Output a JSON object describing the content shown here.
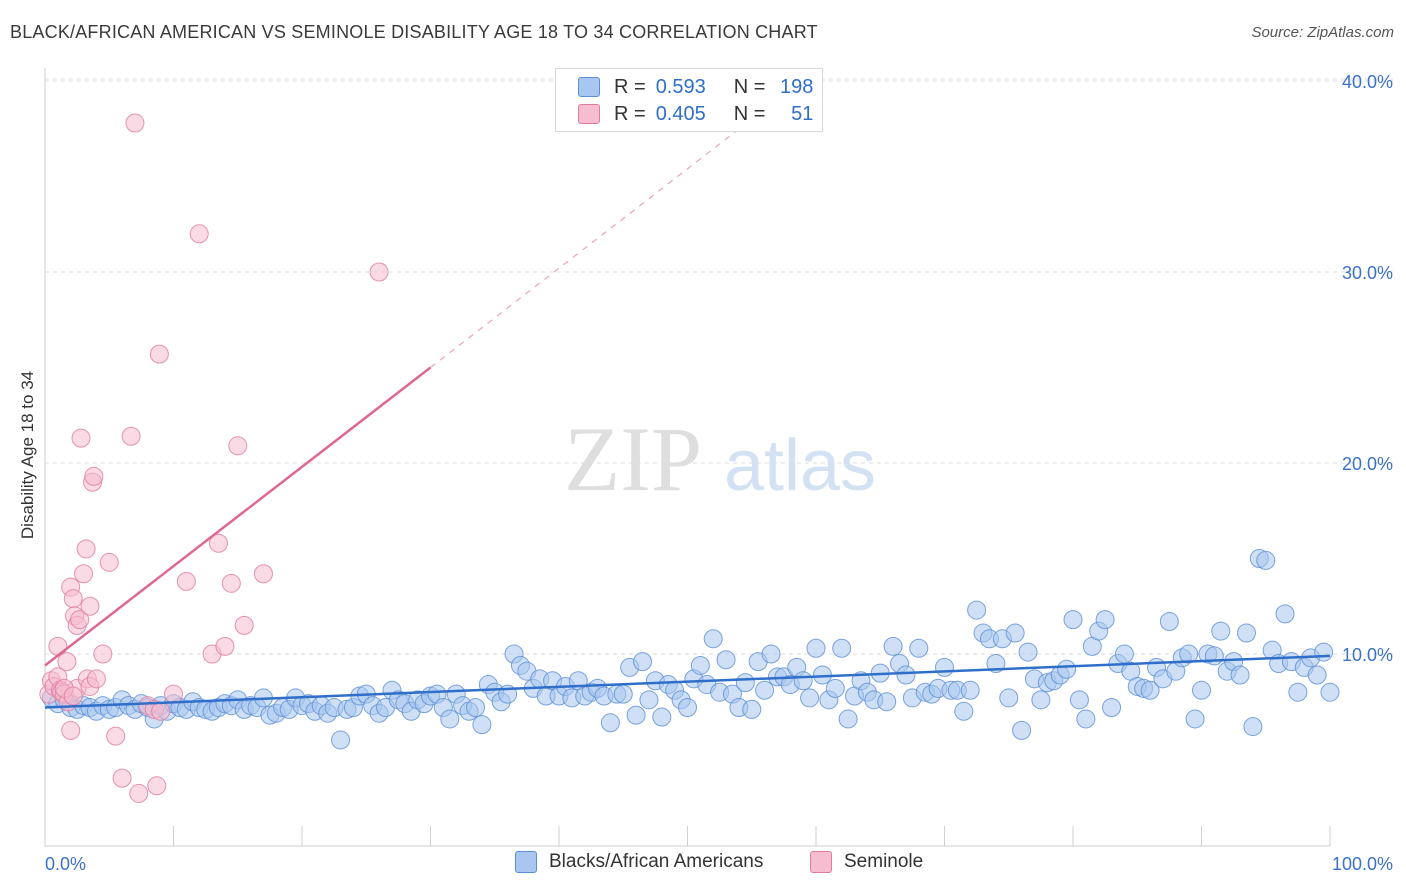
{
  "header": {
    "title": "BLACK/AFRICAN AMERICAN VS SEMINOLE DISABILITY AGE 18 TO 34 CORRELATION CHART",
    "source": "Source: ZipAtlas.com"
  },
  "watermark": {
    "zip": "ZIP",
    "atlas": "atlas"
  },
  "legend_box": {
    "rows": [
      {
        "r_label": "R = ",
        "r_value": "0.593",
        "n_label": "N = ",
        "n_value": "198",
        "color": "#a8c6ef",
        "edge": "#5b8fd6"
      },
      {
        "r_label": "R = ",
        "r_value": "0.405",
        "n_label": "N = ",
        "n_value": "51",
        "color": "#f6bcd0",
        "edge": "#e07ba0"
      }
    ]
  },
  "bottom_legend": [
    {
      "label": "Blacks/African Americans",
      "color": "#a8c6ef",
      "edge": "#5b8fd6"
    },
    {
      "label": "Seminole",
      "color": "#f6bcd0",
      "edge": "#e07ba0"
    }
  ],
  "chart_data": {
    "type": "scatter",
    "title": "BLACK/AFRICAN AMERICAN VS SEMINOLE DISABILITY AGE 18 TO 34 CORRELATION CHART",
    "xlabel": "",
    "ylabel": "Disability Age 18 to 34",
    "xlim": [
      0,
      100
    ],
    "ylim": [
      0,
      40
    ],
    "x_tick_labels": [
      "0.0%",
      "100.0%"
    ],
    "y_ticks": [
      10,
      20,
      30,
      40
    ],
    "y_tick_labels": [
      "10.0%",
      "20.0%",
      "30.0%",
      "40.0%"
    ],
    "grid": true,
    "legend_position": "top-center",
    "series": [
      {
        "name": "Blacks/African Americans",
        "color": "#5b8fd6",
        "fill": "#a8c6ef",
        "trend": {
          "x": [
            0,
            100
          ],
          "y": [
            7.2,
            9.9
          ]
        },
        "points": [
          [
            0.5,
            7.7
          ],
          [
            1,
            7.4
          ],
          [
            1.5,
            7.6
          ],
          [
            2,
            7.2
          ],
          [
            2.5,
            7.1
          ],
          [
            3,
            7.3
          ],
          [
            3.5,
            7.2
          ],
          [
            4,
            7.0
          ],
          [
            4.5,
            7.3
          ],
          [
            5,
            7.1
          ],
          [
            5.5,
            7.2
          ],
          [
            6,
            7.6
          ],
          [
            6.5,
            7.3
          ],
          [
            7,
            7.1
          ],
          [
            7.5,
            7.4
          ],
          [
            8,
            7.2
          ],
          [
            8.5,
            6.6
          ],
          [
            9,
            7.3
          ],
          [
            9.5,
            7.0
          ],
          [
            10,
            7.4
          ],
          [
            10.5,
            7.2
          ],
          [
            11,
            7.1
          ],
          [
            11.5,
            7.5
          ],
          [
            12,
            7.2
          ],
          [
            12.5,
            7.1
          ],
          [
            13,
            7.0
          ],
          [
            13.5,
            7.2
          ],
          [
            14,
            7.4
          ],
          [
            14.5,
            7.3
          ],
          [
            15,
            7.6
          ],
          [
            15.5,
            7.1
          ],
          [
            16,
            7.3
          ],
          [
            16.5,
            7.2
          ],
          [
            17,
            7.7
          ],
          [
            17.5,
            6.8
          ],
          [
            18,
            6.9
          ],
          [
            18.5,
            7.2
          ],
          [
            19,
            7.1
          ],
          [
            19.5,
            7.7
          ],
          [
            20,
            7.3
          ],
          [
            20.5,
            7.4
          ],
          [
            21,
            7.0
          ],
          [
            21.5,
            7.3
          ],
          [
            22,
            6.9
          ],
          [
            22.5,
            7.2
          ],
          [
            23,
            5.5
          ],
          [
            23.5,
            7.1
          ],
          [
            24,
            7.2
          ],
          [
            24.5,
            7.8
          ],
          [
            25,
            7.9
          ],
          [
            25.5,
            7.3
          ],
          [
            26,
            6.9
          ],
          [
            26.5,
            7.2
          ],
          [
            27,
            8.1
          ],
          [
            27.5,
            7.6
          ],
          [
            28,
            7.4
          ],
          [
            28.5,
            7.0
          ],
          [
            29,
            7.6
          ],
          [
            29.5,
            7.4
          ],
          [
            30,
            7.8
          ],
          [
            30.5,
            7.9
          ],
          [
            31,
            7.2
          ],
          [
            31.5,
            6.6
          ],
          [
            32,
            7.9
          ],
          [
            32.5,
            7.3
          ],
          [
            33,
            7.0
          ],
          [
            33.5,
            7.2
          ],
          [
            34,
            6.3
          ],
          [
            34.5,
            8.4
          ],
          [
            35,
            8.0
          ],
          [
            35.5,
            7.5
          ],
          [
            36,
            7.9
          ],
          [
            36.5,
            10.0
          ],
          [
            37,
            9.4
          ],
          [
            37.5,
            9.1
          ],
          [
            38,
            8.2
          ],
          [
            38.5,
            8.7
          ],
          [
            39,
            7.8
          ],
          [
            39.5,
            8.6
          ],
          [
            40,
            7.8
          ],
          [
            40.5,
            8.3
          ],
          [
            41,
            7.7
          ],
          [
            41.5,
            8.6
          ],
          [
            42,
            7.8
          ],
          [
            42.5,
            8.0
          ],
          [
            43,
            8.2
          ],
          [
            43.5,
            7.8
          ],
          [
            44,
            6.4
          ],
          [
            44.5,
            7.9
          ],
          [
            45,
            7.9
          ],
          [
            45.5,
            9.3
          ],
          [
            46,
            6.8
          ],
          [
            46.5,
            9.6
          ],
          [
            47,
            7.6
          ],
          [
            47.5,
            8.6
          ],
          [
            48,
            6.7
          ],
          [
            48.5,
            8.4
          ],
          [
            49,
            8.1
          ],
          [
            49.5,
            7.6
          ],
          [
            50,
            7.2
          ],
          [
            50.5,
            8.7
          ],
          [
            51,
            9.4
          ],
          [
            51.5,
            8.4
          ],
          [
            52,
            10.8
          ],
          [
            52.5,
            8.0
          ],
          [
            53,
            9.7
          ],
          [
            53.5,
            7.9
          ],
          [
            54,
            7.2
          ],
          [
            54.5,
            8.5
          ],
          [
            55,
            7.1
          ],
          [
            55.5,
            9.6
          ],
          [
            56,
            8.1
          ],
          [
            56.5,
            10.0
          ],
          [
            57,
            8.8
          ],
          [
            57.5,
            8.8
          ],
          [
            58,
            8.4
          ],
          [
            58.5,
            9.3
          ],
          [
            59,
            8.6
          ],
          [
            59.5,
            7.7
          ],
          [
            60,
            10.3
          ],
          [
            60.5,
            8.9
          ],
          [
            61,
            7.6
          ],
          [
            61.5,
            8.2
          ],
          [
            62,
            10.3
          ],
          [
            62.5,
            6.6
          ],
          [
            63,
            7.8
          ],
          [
            63.5,
            8.6
          ],
          [
            64,
            8.0
          ],
          [
            64.5,
            7.6
          ],
          [
            65,
            9.0
          ],
          [
            65.5,
            7.5
          ],
          [
            66,
            10.4
          ],
          [
            66.5,
            9.5
          ],
          [
            67,
            8.9
          ],
          [
            67.5,
            7.7
          ],
          [
            68,
            10.3
          ],
          [
            68.5,
            8.0
          ],
          [
            69,
            7.9
          ],
          [
            69.5,
            8.2
          ],
          [
            70,
            9.3
          ],
          [
            70.5,
            8.1
          ],
          [
            71,
            8.1
          ],
          [
            71.5,
            7.0
          ],
          [
            72,
            8.1
          ],
          [
            72.5,
            12.3
          ],
          [
            73,
            11.1
          ],
          [
            73.5,
            10.8
          ],
          [
            74,
            9.5
          ],
          [
            74.5,
            10.8
          ],
          [
            75,
            7.7
          ],
          [
            75.5,
            11.1
          ],
          [
            76,
            6.0
          ],
          [
            76.5,
            10.1
          ],
          [
            77,
            8.7
          ],
          [
            77.5,
            7.6
          ],
          [
            78,
            8.5
          ],
          [
            78.5,
            8.6
          ],
          [
            79,
            8.9
          ],
          [
            79.5,
            9.2
          ],
          [
            80,
            11.8
          ],
          [
            80.5,
            7.6
          ],
          [
            81,
            6.6
          ],
          [
            81.5,
            10.4
          ],
          [
            82,
            11.2
          ],
          [
            82.5,
            11.8
          ],
          [
            83,
            7.2
          ],
          [
            83.5,
            9.5
          ],
          [
            84,
            10.0
          ],
          [
            84.5,
            9.1
          ],
          [
            85,
            8.3
          ],
          [
            85.5,
            8.2
          ],
          [
            86,
            8.1
          ],
          [
            86.5,
            9.3
          ],
          [
            87,
            8.7
          ],
          [
            87.5,
            11.7
          ],
          [
            88,
            9.1
          ],
          [
            88.5,
            9.8
          ],
          [
            89,
            10.0
          ],
          [
            89.5,
            6.6
          ],
          [
            90,
            8.1
          ],
          [
            90.5,
            10.0
          ],
          [
            91,
            9.9
          ],
          [
            91.5,
            11.2
          ],
          [
            92,
            9.1
          ],
          [
            92.5,
            9.6
          ],
          [
            93,
            8.9
          ],
          [
            93.5,
            11.1
          ],
          [
            94,
            6.2
          ],
          [
            94.5,
            15.0
          ],
          [
            95,
            14.9
          ],
          [
            95.5,
            10.2
          ],
          [
            96,
            9.5
          ],
          [
            96.5,
            12.1
          ],
          [
            97,
            9.6
          ],
          [
            97.5,
            8.0
          ],
          [
            98,
            9.3
          ],
          [
            98.5,
            9.8
          ],
          [
            99,
            8.9
          ],
          [
            99.5,
            10.1
          ],
          [
            100,
            8.0
          ]
        ]
      },
      {
        "name": "Seminole",
        "color": "#e07ba0",
        "fill": "#f6bcd0",
        "trend": {
          "x": [
            0,
            30
          ],
          "y": [
            9.4,
            25.0
          ]
        },
        "trend_ext": {
          "x": [
            30,
            60
          ],
          "y": [
            25.0,
            40.6
          ]
        },
        "points": [
          [
            0.3,
            7.9
          ],
          [
            0.5,
            8.6
          ],
          [
            0.7,
            8.3
          ],
          [
            1,
            10.4
          ],
          [
            1,
            8.8
          ],
          [
            1.2,
            8.1
          ],
          [
            1.3,
            8.0
          ],
          [
            1.5,
            7.9
          ],
          [
            1.7,
            9.6
          ],
          [
            1.8,
            7.5
          ],
          [
            2,
            13.5
          ],
          [
            2,
            6.0
          ],
          [
            2.2,
            12.9
          ],
          [
            2.3,
            12.0
          ],
          [
            2.5,
            11.5
          ],
          [
            2.7,
            11.8
          ],
          [
            2.5,
            8.2
          ],
          [
            2.8,
            21.3
          ],
          [
            3,
            14.2
          ],
          [
            3.2,
            15.5
          ],
          [
            3.3,
            8.7
          ],
          [
            3.5,
            12.5
          ],
          [
            3.5,
            8.3
          ],
          [
            3.7,
            19.0
          ],
          [
            3.8,
            19.3
          ],
          [
            4,
            8.7
          ],
          [
            4.5,
            10.0
          ],
          [
            5,
            14.8
          ],
          [
            5.5,
            5.7
          ],
          [
            6,
            3.5
          ],
          [
            6.7,
            21.4
          ],
          [
            7,
            37.8
          ],
          [
            7.3,
            2.7
          ],
          [
            8,
            7.3
          ],
          [
            8.5,
            7.1
          ],
          [
            8.7,
            3.1
          ],
          [
            8.9,
            25.7
          ],
          [
            9,
            7.0
          ],
          [
            10,
            7.9
          ],
          [
            11,
            13.8
          ],
          [
            12,
            32.0
          ],
          [
            13,
            10.0
          ],
          [
            13.5,
            15.8
          ],
          [
            14,
            10.4
          ],
          [
            14.5,
            13.7
          ],
          [
            15,
            20.9
          ],
          [
            15.5,
            11.5
          ],
          [
            17,
            14.2
          ],
          [
            26,
            30.0
          ],
          [
            1.5,
            8.2
          ],
          [
            2.2,
            7.8
          ]
        ]
      }
    ]
  }
}
